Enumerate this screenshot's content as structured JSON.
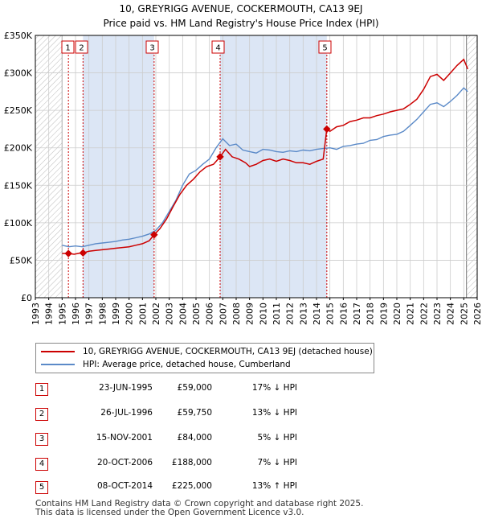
{
  "title_line1": "10, GREYRIGG AVENUE, COCKERMOUTH, CA13 9EJ",
  "title_line2": "Price paid vs. HM Land Registry's House Price Index (HPI)",
  "colors": {
    "property": "#cc0000",
    "hpi": "#5b8ac8",
    "shade": "#dce6f5",
    "hatch": "#bbbbbb",
    "grid": "#cccccc"
  },
  "legend": {
    "property_label": "10, GREYRIGG AVENUE, COCKERMOUTH, CA13 9EJ (detached house)",
    "hpi_label": "HPI: Average price, detached house, Cumberland"
  },
  "chart_data": {
    "type": "line",
    "xlim": [
      1993,
      2026
    ],
    "ylim": [
      0,
      350000
    ],
    "x_ticks": [
      "1993",
      "1994",
      "1995",
      "1996",
      "1997",
      "1998",
      "1999",
      "2000",
      "2001",
      "2002",
      "2003",
      "2004",
      "2005",
      "2006",
      "2007",
      "2008",
      "2009",
      "2010",
      "2011",
      "2012",
      "2013",
      "2014",
      "2015",
      "2016",
      "2017",
      "2018",
      "2019",
      "2020",
      "2021",
      "2022",
      "2023",
      "2024",
      "2025",
      "2026"
    ],
    "y_ticks": [
      {
        "value": 0,
        "label": "£0"
      },
      {
        "value": 50000,
        "label": "£50K"
      },
      {
        "value": 100000,
        "label": "£100K"
      },
      {
        "value": 150000,
        "label": "£150K"
      },
      {
        "value": 200000,
        "label": "£200K"
      },
      {
        "value": 250000,
        "label": "£250K"
      },
      {
        "value": 300000,
        "label": "£300K"
      },
      {
        "value": 350000,
        "label": "£350K"
      }
    ],
    "series": [
      {
        "name": "HPI: Average price, detached house, Cumberland",
        "x": [
          1995.0,
          1995.5,
          1996.0,
          1996.5,
          1997.0,
          1997.5,
          1998.0,
          1998.5,
          1999.0,
          1999.5,
          2000.0,
          2000.5,
          2001.0,
          2001.5,
          2002.0,
          2002.5,
          2003.0,
          2003.5,
          2004.0,
          2004.5,
          2005.0,
          2005.5,
          2006.0,
          2006.5,
          2007.0,
          2007.5,
          2008.0,
          2008.5,
          2009.0,
          2009.5,
          2010.0,
          2010.5,
          2011.0,
          2011.5,
          2012.0,
          2012.5,
          2013.0,
          2013.5,
          2014.0,
          2014.5,
          2015.0,
          2015.5,
          2016.0,
          2016.5,
          2017.0,
          2017.5,
          2018.0,
          2018.5,
          2019.0,
          2019.5,
          2020.0,
          2020.5,
          2021.0,
          2021.5,
          2022.0,
          2022.5,
          2023.0,
          2023.5,
          2024.0,
          2024.5,
          2025.0,
          2025.3
        ],
        "values": [
          70000,
          68000,
          69000,
          68000,
          70000,
          72000,
          73000,
          74000,
          75000,
          77000,
          78000,
          80000,
          82000,
          85000,
          90000,
          100000,
          115000,
          130000,
          150000,
          165000,
          170000,
          178000,
          185000,
          200000,
          212000,
          203000,
          205000,
          197000,
          195000,
          193000,
          198000,
          197000,
          195000,
          194000,
          196000,
          195000,
          197000,
          196000,
          198000,
          199000,
          200000,
          198000,
          202000,
          203000,
          205000,
          206000,
          210000,
          211000,
          215000,
          217000,
          218000,
          222000,
          230000,
          238000,
          248000,
          258000,
          260000,
          255000,
          262000,
          270000,
          280000,
          275000
        ]
      },
      {
        "name": "10, GREYRIGG AVENUE, COCKERMOUTH, CA13 9EJ (detached house)",
        "x": [
          1995.0,
          1995.47,
          1995.9,
          1996.3,
          1996.56,
          1997.0,
          1997.5,
          1998.0,
          1998.5,
          1999.0,
          1999.5,
          2000.0,
          2000.5,
          2001.0,
          2001.5,
          2001.87,
          2002.3,
          2002.8,
          2003.3,
          2003.8,
          2004.3,
          2004.8,
          2005.3,
          2005.8,
          2006.3,
          2006.8,
          2007.2,
          2007.7,
          2008.2,
          2008.7,
          2009.0,
          2009.5,
          2010.0,
          2010.5,
          2011.0,
          2011.5,
          2012.0,
          2012.5,
          2013.0,
          2013.5,
          2014.0,
          2014.5,
          2014.77,
          2015.0,
          2015.5,
          2016.0,
          2016.5,
          2017.0,
          2017.5,
          2018.0,
          2018.5,
          2019.0,
          2019.5,
          2020.0,
          2020.5,
          2021.0,
          2021.5,
          2022.0,
          2022.5,
          2023.0,
          2023.5,
          2024.0,
          2024.5,
          2025.0,
          2025.3
        ],
        "values": [
          59000,
          59000,
          58000,
          59500,
          59750,
          62000,
          63000,
          64000,
          65000,
          66000,
          67000,
          68000,
          70000,
          72000,
          76000,
          84000,
          92000,
          105000,
          122000,
          138000,
          150000,
          158000,
          168000,
          175000,
          178000,
          188000,
          198000,
          188000,
          185000,
          180000,
          175000,
          178000,
          183000,
          185000,
          182000,
          185000,
          183000,
          180000,
          180000,
          178000,
          182000,
          185000,
          225000,
          222000,
          228000,
          230000,
          235000,
          237000,
          240000,
          240000,
          243000,
          245000,
          248000,
          250000,
          252000,
          258000,
          265000,
          278000,
          295000,
          298000,
          290000,
          300000,
          310000,
          318000,
          305000
        ]
      }
    ],
    "sales": [
      {
        "n": "1",
        "x": 1995.47,
        "price": 59000
      },
      {
        "n": "2",
        "x": 1996.56,
        "price": 59750
      },
      {
        "n": "3",
        "x": 2001.87,
        "price": 84000
      },
      {
        "n": "4",
        "x": 2006.8,
        "price": 188000
      },
      {
        "n": "5",
        "x": 2014.77,
        "price": 225000
      }
    ],
    "hatch_before": 1995.0,
    "hatch_after": 2025.2
  },
  "sales_table": [
    {
      "n": "1",
      "date": "23-JUN-1995",
      "price": "£59,000",
      "hpi": "17% ↓ HPI"
    },
    {
      "n": "2",
      "date": "26-JUL-1996",
      "price": "£59,750",
      "hpi": "13% ↓ HPI"
    },
    {
      "n": "3",
      "date": "15-NOV-2001",
      "price": "£84,000",
      "hpi": "5% ↓ HPI"
    },
    {
      "n": "4",
      "date": "20-OCT-2006",
      "price": "£188,000",
      "hpi": "7% ↓ HPI"
    },
    {
      "n": "5",
      "date": "08-OCT-2014",
      "price": "£225,000",
      "hpi": "13% ↑ HPI"
    }
  ],
  "footer_line1": "Contains HM Land Registry data © Crown copyright and database right 2025.",
  "footer_line2": "This data is licensed under the Open Government Licence v3.0."
}
